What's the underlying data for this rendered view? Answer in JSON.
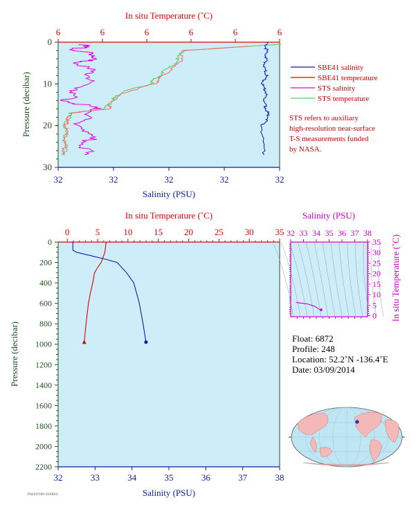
{
  "colors": {
    "panel_bg": "#cdeef8",
    "temperature": "#dd0000",
    "salinity": "#0a1aa8",
    "sts_salinity": "#e000e0",
    "sts_temperature": "#55cc55",
    "sbe_temperature": "#ff6666",
    "pressure_axis": "#1f4f1f",
    "ts_axis": "#cc00cc"
  },
  "top_panel": {
    "top_axis_label": "In situ Temperature (˚C)",
    "top_ticks": [
      "6",
      "6",
      "6",
      "6",
      "6",
      "6"
    ],
    "bottom_axis_label": "Salinity (PSU)",
    "bottom_ticks": [
      "32",
      "32",
      "32",
      "32",
      "32"
    ],
    "left_axis_label": "Pressure (decibar)",
    "left_ticks": [
      "0",
      "10",
      "20",
      "30"
    ],
    "legend": [
      {
        "label": "SBE41 salinity",
        "color": "#0a1aa8"
      },
      {
        "label": "SBE41 temperature",
        "color": "#dd0000"
      },
      {
        "label": "STS salinity",
        "color": "#e000e0"
      },
      {
        "label": "STS temperature",
        "color": "#55cc55"
      }
    ],
    "note": [
      "STS refers to auxiliary",
      "high-resolution near-surface",
      "T-S measurements funded",
      "by NASA."
    ]
  },
  "bottom_panel": {
    "top_axis_label": "In situ Temperature (˚C)",
    "top_ticks": [
      "0",
      "5",
      "10",
      "15",
      "20",
      "25",
      "30",
      "35"
    ],
    "bottom_axis_label": "Salinity (PSU)",
    "bottom_ticks": [
      "32",
      "33",
      "34",
      "35",
      "36",
      "37",
      "38"
    ],
    "left_axis_label": "Pressure (decibar)",
    "left_ticks": [
      "0",
      "200",
      "400",
      "600",
      "800",
      "1000",
      "1200",
      "1400",
      "1600",
      "1800",
      "2000",
      "2200"
    ]
  },
  "ts_panel": {
    "top_axis_label": "Salinity (PSU)",
    "top_ticks": [
      "32",
      "33",
      "34",
      "35",
      "36",
      "37",
      "38"
    ],
    "right_axis_label": "In situ Temperature (˚C)",
    "right_ticks": [
      "35",
      "30",
      "25",
      "20",
      "15",
      "10",
      "5",
      "0"
    ]
  },
  "info": {
    "float": "Float:  6872",
    "profile": "Profile:  248",
    "location": "Location:  52.2˚N  -136.4˚E",
    "date": "Date:  03/09/2014"
  },
  "footer_code": "FSI-0471R1 0310014",
  "chart_data": [
    {
      "type": "line",
      "panel": "near-surface profile",
      "ylabel": "Pressure (decibar)",
      "ylim": [
        30,
        0
      ],
      "series": [
        {
          "name": "SBE41 salinity",
          "axis": "salinity",
          "x": [
            32.47,
            32.47,
            32.47,
            32.465,
            32.47,
            32.46,
            32.47,
            32.465,
            32.47,
            32.475,
            32.46,
            32.465
          ],
          "y": [
            0,
            2,
            4,
            6,
            8,
            10,
            12,
            14,
            16,
            18,
            20,
            27
          ]
        },
        {
          "name": "SBE41 temperature",
          "axis": "temperature",
          "x": [
            6.36,
            6.2,
            6.19,
            6.15,
            6.13,
            6.06,
            6.03,
            6.02,
            5.93,
            5.92,
            5.92,
            5.915,
            5.915
          ],
          "y": [
            1,
            2,
            5,
            8,
            10,
            12,
            14,
            16,
            17,
            19,
            21,
            24,
            27
          ]
        },
        {
          "name": "STS salinity",
          "axis": "salinity",
          "x": [
            32.06,
            32.04,
            32.09,
            32.05,
            32.08,
            32.05,
            32.02,
            32.09,
            32.05,
            32.07,
            32.06
          ],
          "y": [
            0.5,
            2,
            3,
            5,
            8,
            11,
            14,
            16,
            19,
            23,
            27
          ]
        },
        {
          "name": "STS temperature",
          "axis": "temperature",
          "x": [
            6.43,
            6.2,
            6.18,
            6.14,
            6.12,
            6.05,
            6.03,
            6.01,
            5.93,
            5.915,
            5.92,
            5.915
          ],
          "y": [
            0.5,
            2,
            5,
            8,
            10,
            12,
            14,
            16,
            17,
            20,
            24,
            27
          ]
        }
      ]
    },
    {
      "type": "line",
      "panel": "full-depth profile",
      "ylabel": "Pressure (decibar)",
      "ylim": [
        2200,
        0
      ],
      "series": [
        {
          "name": "Salinity",
          "axis": "salinity",
          "x": [
            32.4,
            32.4,
            32.5,
            32.85,
            33.3,
            33.6,
            33.85,
            34.05,
            34.2,
            34.3,
            34.38
          ],
          "y": [
            0,
            80,
            100,
            130,
            170,
            200,
            300,
            400,
            600,
            800,
            980
          ]
        },
        {
          "name": "In situ Temperature",
          "axis": "temperature",
          "x": [
            6.4,
            6.2,
            5.6,
            5.0,
            4.5,
            4.2,
            3.8,
            3.5,
            3.1,
            2.8
          ],
          "y": [
            0,
            100,
            200,
            250,
            300,
            400,
            500,
            600,
            800,
            980
          ]
        }
      ]
    },
    {
      "type": "scatter",
      "panel": "T-S diagram",
      "xlabel": "Salinity (PSU)",
      "ylabel": "In situ Temperature (˚C)",
      "xlim": [
        32,
        38
      ],
      "ylim": [
        0,
        35
      ],
      "series": [
        {
          "name": "profile",
          "x": [
            32.4,
            32.5,
            33.3,
            33.85,
            34.05,
            34.2,
            34.38
          ],
          "y": [
            6.4,
            6.2,
            5.6,
            4.5,
            3.8,
            3.1,
            2.8
          ]
        }
      ]
    }
  ]
}
